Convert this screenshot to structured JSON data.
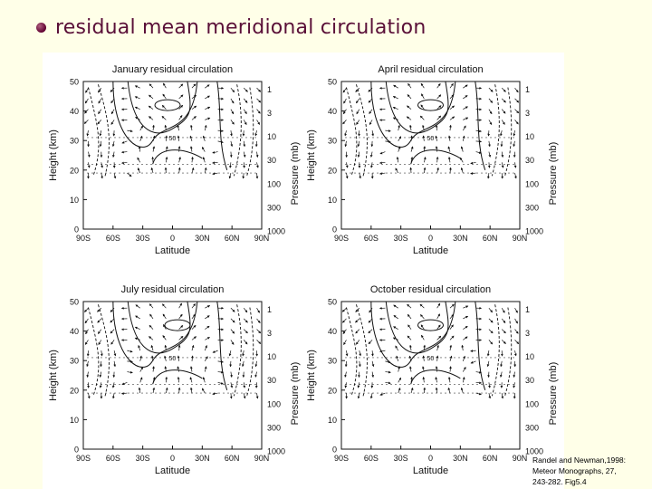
{
  "slide": {
    "title": "residual mean meridional circulation",
    "bullet_color": "#600030",
    "title_color": "#5a1038",
    "background": "#ffffe8"
  },
  "panels": [
    {
      "title": "January residual circulation",
      "contour_label": "50"
    },
    {
      "title": "April residual circulation",
      "contour_label": "50"
    },
    {
      "title": "July residual circulation",
      "contour_label": "50"
    },
    {
      "title": "October residual circulation",
      "contour_label": "50"
    }
  ],
  "axes": {
    "xlabel": "Latitude",
    "ylabel_left": "Height (km)",
    "ylabel_right": "Pressure (mb)",
    "x_ticks": [
      "90S",
      "60S",
      "30S",
      "0",
      "30N",
      "60N",
      "90N"
    ],
    "y_ticks_left": [
      "50",
      "40",
      "30",
      "20",
      "10",
      "0"
    ],
    "y_ticks_right": [
      "1",
      "3",
      "10",
      "30",
      "100",
      "300",
      "1000"
    ]
  },
  "caption": {
    "line1": "Randel and Newman,1998:",
    "line2": "Meteor Monographs, 27,",
    "line3": "243-282. Fig5.4"
  }
}
